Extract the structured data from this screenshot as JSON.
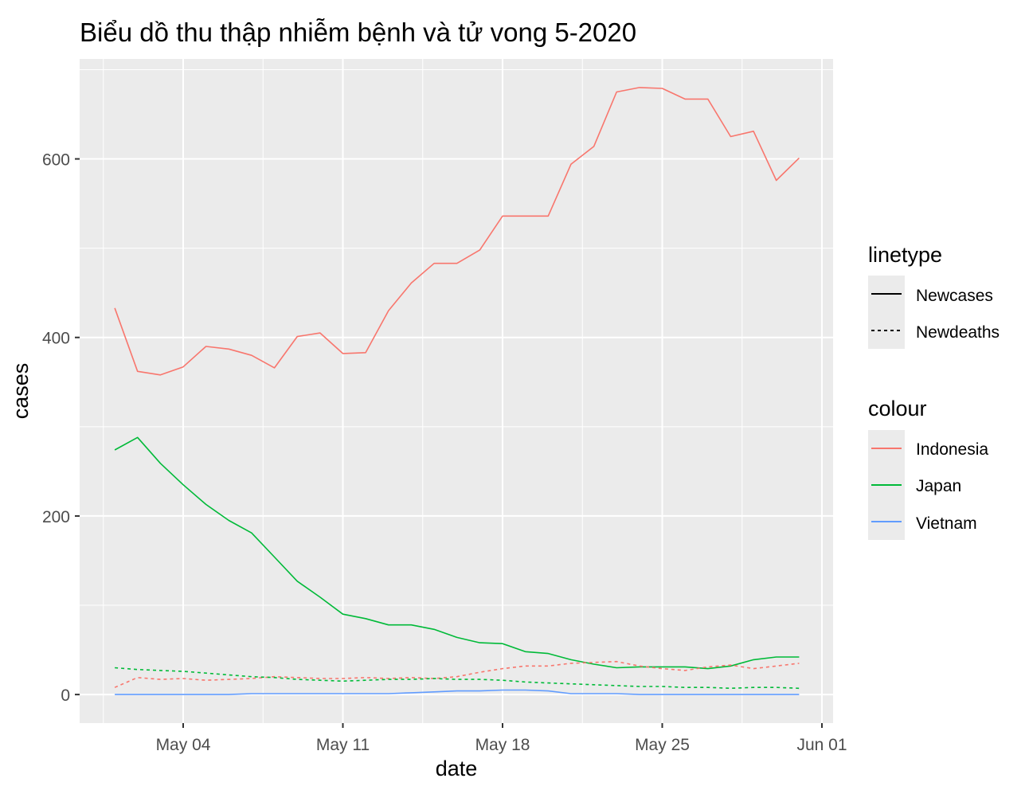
{
  "chart_data": {
    "type": "line",
    "title": "Biểu dồ thu thập nhiễm bệnh và tử vong 5-2020",
    "xlabel": "date",
    "ylabel": "cases",
    "x_ticks": [
      "2020-05-04",
      "2020-05-11",
      "2020-05-18",
      "2020-05-25",
      "2020-06-01"
    ],
    "x_tick_labels": [
      "May 04",
      "May 11",
      "May 18",
      "May 25",
      "Jun 01"
    ],
    "y_ticks": [
      0,
      200,
      400,
      600
    ],
    "y_tick_labels": [
      "0",
      "200",
      "400",
      "600"
    ],
    "xlim": [
      "2020-04-30",
      "2020-06-01"
    ],
    "ylim": [
      -32,
      712
    ],
    "grid": true,
    "background": "#ebebeb",
    "dates": [
      "2020-05-01",
      "2020-05-02",
      "2020-05-03",
      "2020-05-04",
      "2020-05-05",
      "2020-05-06",
      "2020-05-07",
      "2020-05-08",
      "2020-05-09",
      "2020-05-10",
      "2020-05-11",
      "2020-05-12",
      "2020-05-13",
      "2020-05-14",
      "2020-05-15",
      "2020-05-16",
      "2020-05-17",
      "2020-05-18",
      "2020-05-19",
      "2020-05-20",
      "2020-05-21",
      "2020-05-22",
      "2020-05-23",
      "2020-05-24",
      "2020-05-25",
      "2020-05-26",
      "2020-05-27",
      "2020-05-28",
      "2020-05-29",
      "2020-05-30",
      "2020-05-31"
    ],
    "series": [
      {
        "name": "Indonesia",
        "linetype": "Newcases",
        "color": "#f8766d",
        "values": [
          433,
          362,
          358,
          367,
          390,
          387,
          380,
          366,
          401,
          405,
          382,
          383,
          430,
          461,
          483,
          483,
          498,
          536,
          536,
          536,
          594,
          614,
          675,
          680,
          679,
          667,
          667,
          625,
          631,
          576,
          601
        ]
      },
      {
        "name": "Japan",
        "linetype": "Newcases",
        "color": "#00ba38",
        "values": [
          274,
          288,
          259,
          235,
          213,
          195,
          181,
          154,
          127,
          109,
          90,
          85,
          78,
          78,
          73,
          64,
          58,
          57,
          48,
          46,
          39,
          34,
          30,
          31,
          31,
          31,
          29,
          32,
          39,
          42,
          42
        ]
      },
      {
        "name": "Vietnam",
        "linetype": "Newcases",
        "color": "#619cff",
        "values": [
          0,
          0,
          0,
          0,
          0,
          0,
          1,
          1,
          1,
          1,
          1,
          1,
          1,
          2,
          3,
          4,
          4,
          5,
          5,
          4,
          1,
          1,
          1,
          0,
          0,
          0,
          0,
          0,
          0,
          0,
          0
        ]
      },
      {
        "name": "Indonesia",
        "linetype": "Newdeaths",
        "color": "#f8766d",
        "values": [
          8,
          19,
          17,
          18,
          16,
          17,
          18,
          20,
          19,
          18,
          18,
          19,
          18,
          19,
          18,
          20,
          25,
          29,
          32,
          32,
          35,
          36,
          37,
          32,
          29,
          27,
          31,
          33,
          29,
          32,
          35
        ]
      },
      {
        "name": "Japan",
        "linetype": "Newdeaths",
        "color": "#00ba38",
        "values": [
          30,
          28,
          27,
          26,
          24,
          22,
          20,
          19,
          17,
          16,
          15,
          16,
          17,
          17,
          18,
          17,
          17,
          16,
          14,
          13,
          12,
          11,
          10,
          9,
          9,
          8,
          8,
          7,
          8,
          8,
          7
        ]
      }
    ]
  },
  "legend": {
    "placement": "right",
    "linetype": {
      "title": "linetype",
      "items": [
        {
          "label": "Newcases",
          "dash": "solid"
        },
        {
          "label": "Newdeaths",
          "dash": "dotted"
        }
      ]
    },
    "colour": {
      "title": "colour",
      "items": [
        {
          "label": "Indonesia",
          "color": "#f8766d"
        },
        {
          "label": "Japan",
          "color": "#00ba38"
        },
        {
          "label": "Vietnam",
          "color": "#619cff"
        }
      ]
    }
  }
}
